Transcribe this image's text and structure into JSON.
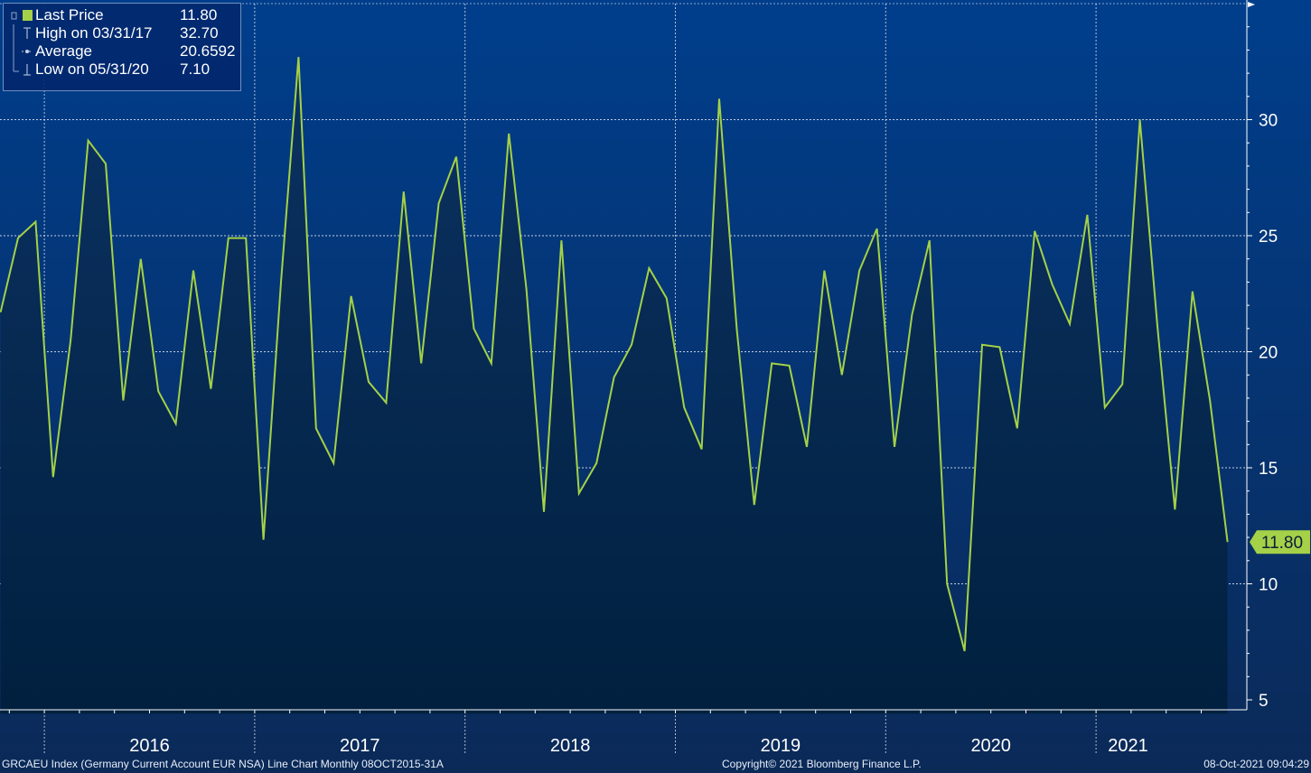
{
  "legend": {
    "last_price": {
      "label": "Last Price",
      "value": "11.80",
      "color": "#a4d147"
    },
    "high": {
      "label": "High on 03/31/17",
      "value": "32.70"
    },
    "average": {
      "label": "Average",
      "value": "20.6592"
    },
    "low": {
      "label": "Low on 05/31/20",
      "value": "7.10"
    }
  },
  "last_value_tag": "11.80",
  "footer": {
    "left": "GRCAEU Index (Germany Current Account EUR NSA) Line Chart  Monthly 08OCT2015-31A",
    "center": "Copyright© 2021 Bloomberg Finance L.P.",
    "right": "08-Oct-2021 09:04:29"
  },
  "chart_data": {
    "type": "area",
    "x_axis": "monthly, Oct 2015 - Aug 2021",
    "x": [
      "2015-10",
      "2015-11",
      "2015-12",
      "2016-01",
      "2016-02",
      "2016-03",
      "2016-04",
      "2016-05",
      "2016-06",
      "2016-07",
      "2016-08",
      "2016-09",
      "2016-10",
      "2016-11",
      "2016-12",
      "2017-01",
      "2017-02",
      "2017-03",
      "2017-04",
      "2017-05",
      "2017-06",
      "2017-07",
      "2017-08",
      "2017-09",
      "2017-10",
      "2017-11",
      "2017-12",
      "2018-01",
      "2018-02",
      "2018-03",
      "2018-04",
      "2018-05",
      "2018-06",
      "2018-07",
      "2018-08",
      "2018-09",
      "2018-10",
      "2018-11",
      "2018-12",
      "2019-01",
      "2019-02",
      "2019-03",
      "2019-04",
      "2019-05",
      "2019-06",
      "2019-07",
      "2019-08",
      "2019-09",
      "2019-10",
      "2019-11",
      "2019-12",
      "2020-01",
      "2020-02",
      "2020-03",
      "2020-04",
      "2020-05",
      "2020-06",
      "2020-07",
      "2020-08",
      "2020-09",
      "2020-10",
      "2020-11",
      "2020-12",
      "2021-01",
      "2021-02",
      "2021-03",
      "2021-04",
      "2021-05",
      "2021-06",
      "2021-07",
      "2021-08"
    ],
    "series": [
      {
        "values": [
          21.7,
          24.9,
          25.6,
          14.6,
          20.5,
          29.1,
          28.1,
          17.9,
          24.0,
          18.3,
          16.9,
          23.5,
          18.4,
          24.9,
          24.9,
          11.9,
          23.0,
          32.7,
          16.7,
          15.2,
          22.4,
          18.7,
          17.8,
          26.9,
          19.5,
          26.4,
          28.4,
          21.0,
          19.5,
          29.4,
          22.7,
          13.1,
          24.8,
          13.9,
          15.2,
          18.9,
          20.3,
          23.6,
          22.3,
          17.6,
          15.8,
          30.9,
          21.0,
          13.4,
          19.5,
          19.4,
          15.9,
          23.5,
          19.0,
          23.5,
          25.3,
          15.9,
          21.6,
          24.8,
          10.0,
          7.1,
          20.3,
          20.2,
          16.7,
          25.2,
          22.9,
          21.2,
          25.9,
          17.6,
          18.6,
          30.0,
          21.1,
          13.2,
          22.6,
          17.9,
          11.8
        ]
      }
    ],
    "y_ticks": [
      5,
      10,
      15,
      20,
      25,
      30
    ],
    "x_tick_labels": [
      "2016",
      "2017",
      "2018",
      "2019",
      "2020",
      "2021"
    ],
    "ylim": [
      4.4,
      34.7
    ],
    "grid": true,
    "colors": {
      "line": "#a4d147",
      "fill": "#05203f",
      "background_top": "#003a86",
      "background_bottom": "#0a2a55"
    }
  }
}
